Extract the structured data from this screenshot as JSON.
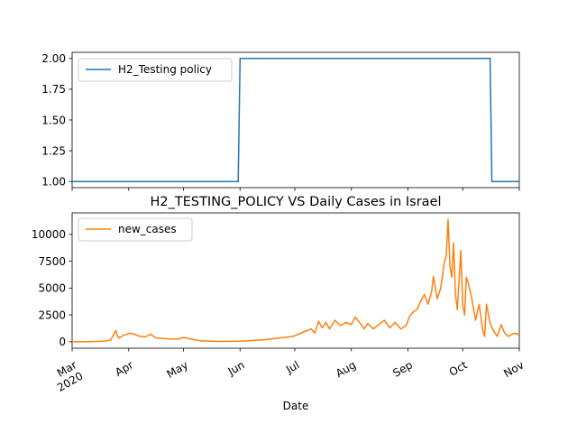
{
  "chart_data": [
    {
      "type": "line",
      "title": "",
      "xlabel": "",
      "ylabel": "",
      "ylim": [
        0.95,
        2.05
      ],
      "yticks": [
        "1.00",
        "1.25",
        "1.50",
        "1.75",
        "2.00"
      ],
      "ytick_values": [
        1.0,
        1.25,
        1.5,
        1.75,
        2.0
      ],
      "grid": false,
      "legend": "upper-left",
      "series": [
        {
          "name": "H2_Testing policy",
          "color": "#1f77b4",
          "x": [
            "2020-03-01",
            "2020-05-31",
            "2020-06-01",
            "2020-10-16",
            "2020-10-17",
            "2020-11-01"
          ],
          "values": [
            1,
            1,
            2,
            2,
            1,
            1
          ]
        }
      ]
    },
    {
      "type": "line",
      "title": "H2_TESTING_POLICY VS Daily Cases in Israel",
      "xlabel": "Date",
      "ylabel": "",
      "ylim": [
        -600,
        12000
      ],
      "yticks": [
        "0",
        "2500",
        "5000",
        "7500",
        "10000"
      ],
      "ytick_values": [
        0,
        2500,
        5000,
        7500,
        10000
      ],
      "xticks": [
        "Mar\n2020",
        "Apr",
        "May",
        "Jun",
        "Jul",
        "Aug",
        "Sep",
        "Oct",
        "Nov"
      ],
      "xtick_dates": [
        "2020-03-01",
        "2020-04-01",
        "2020-05-01",
        "2020-06-01",
        "2020-07-01",
        "2020-08-01",
        "2020-09-01",
        "2020-10-01",
        "2020-11-01"
      ],
      "xlim": [
        "2020-03-01",
        "2020-11-01"
      ],
      "grid": false,
      "legend": "upper-left",
      "series": [
        {
          "name": "new_cases",
          "color": "#ff7f0e",
          "x": [
            "2020-03-01",
            "2020-03-10",
            "2020-03-18",
            "2020-03-22",
            "2020-03-25",
            "2020-03-26",
            "2020-03-27",
            "2020-03-29",
            "2020-04-02",
            "2020-04-05",
            "2020-04-07",
            "2020-04-10",
            "2020-04-13",
            "2020-04-16",
            "2020-04-20",
            "2020-04-24",
            "2020-04-28",
            "2020-05-01",
            "2020-05-10",
            "2020-05-20",
            "2020-05-31",
            "2020-06-05",
            "2020-06-10",
            "2020-06-15",
            "2020-06-20",
            "2020-06-25",
            "2020-06-30",
            "2020-07-03",
            "2020-07-07",
            "2020-07-10",
            "2020-07-12",
            "2020-07-14",
            "2020-07-16",
            "2020-07-18",
            "2020-07-20",
            "2020-07-23",
            "2020-07-26",
            "2020-07-29",
            "2020-08-01",
            "2020-08-03",
            "2020-08-05",
            "2020-08-08",
            "2020-08-10",
            "2020-08-13",
            "2020-08-16",
            "2020-08-19",
            "2020-08-22",
            "2020-08-25",
            "2020-08-28",
            "2020-08-31",
            "2020-09-02",
            "2020-09-04",
            "2020-09-06",
            "2020-09-08",
            "2020-09-10",
            "2020-09-12",
            "2020-09-14",
            "2020-09-15",
            "2020-09-17",
            "2020-09-19",
            "2020-09-21",
            "2020-09-22",
            "2020-09-23",
            "2020-09-24",
            "2020-09-25",
            "2020-09-26",
            "2020-09-27",
            "2020-09-28",
            "2020-09-29",
            "2020-09-30",
            "2020-10-01",
            "2020-10-02",
            "2020-10-03",
            "2020-10-04",
            "2020-10-06",
            "2020-10-08",
            "2020-10-10",
            "2020-10-12",
            "2020-10-13",
            "2020-10-14",
            "2020-10-16",
            "2020-10-18",
            "2020-10-20",
            "2020-10-22",
            "2020-10-24",
            "2020-10-26",
            "2020-10-28",
            "2020-10-30",
            "2020-11-01"
          ],
          "values": [
            0,
            10,
            50,
            150,
            1050,
            450,
            350,
            600,
            800,
            650,
            500,
            450,
            700,
            350,
            300,
            250,
            250,
            400,
            100,
            30,
            50,
            80,
            150,
            200,
            300,
            400,
            500,
            700,
            1000,
            1200,
            800,
            1900,
            1300,
            1800,
            1200,
            2000,
            1500,
            1800,
            1600,
            2300,
            1900,
            1200,
            1700,
            1200,
            1600,
            2000,
            1300,
            1800,
            1200,
            1500,
            2400,
            2800,
            3000,
            3800,
            4400,
            3500,
            4700,
            6100,
            4000,
            5000,
            7500,
            8000,
            11400,
            7000,
            6000,
            9200,
            4500,
            3000,
            5700,
            8500,
            3500,
            2500,
            6000,
            5500,
            4000,
            2000,
            3500,
            1000,
            500,
            3500,
            1700,
            1000,
            500,
            1600,
            800,
            500,
            700,
            800,
            600
          ]
        }
      ]
    }
  ]
}
